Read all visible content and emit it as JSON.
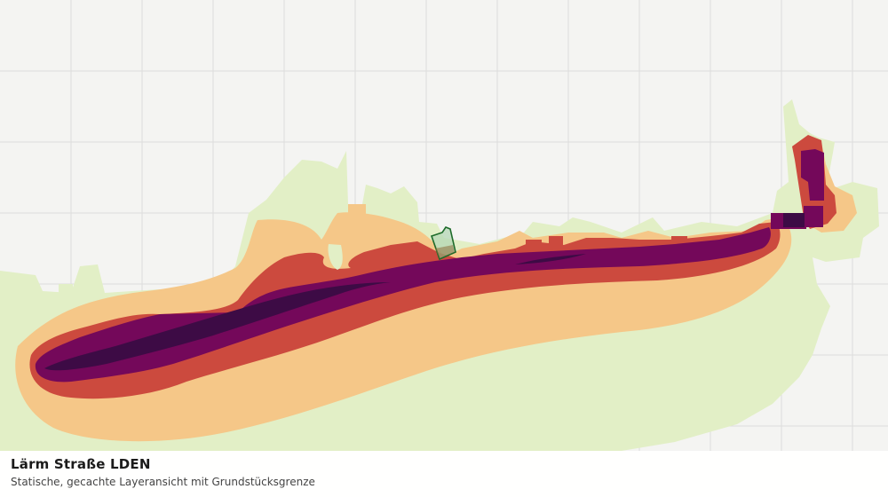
{
  "caption": {
    "title": "Lärm Straße LDEN",
    "subtitle": "Statische, gecachte Layeransicht mit Grundstücksgrenze"
  },
  "layer": {
    "name": "Lärm Straße LDEN",
    "noise_band_colors": [
      "#f5c788",
      "#cc4a3e",
      "#74085a",
      "#3d0b45"
    ]
  },
  "colors": {
    "background": "#f4f4f2",
    "grid_line": "#dcdcdc",
    "land": "#e2efc6",
    "parcel_outline": "#1e6b2a"
  }
}
